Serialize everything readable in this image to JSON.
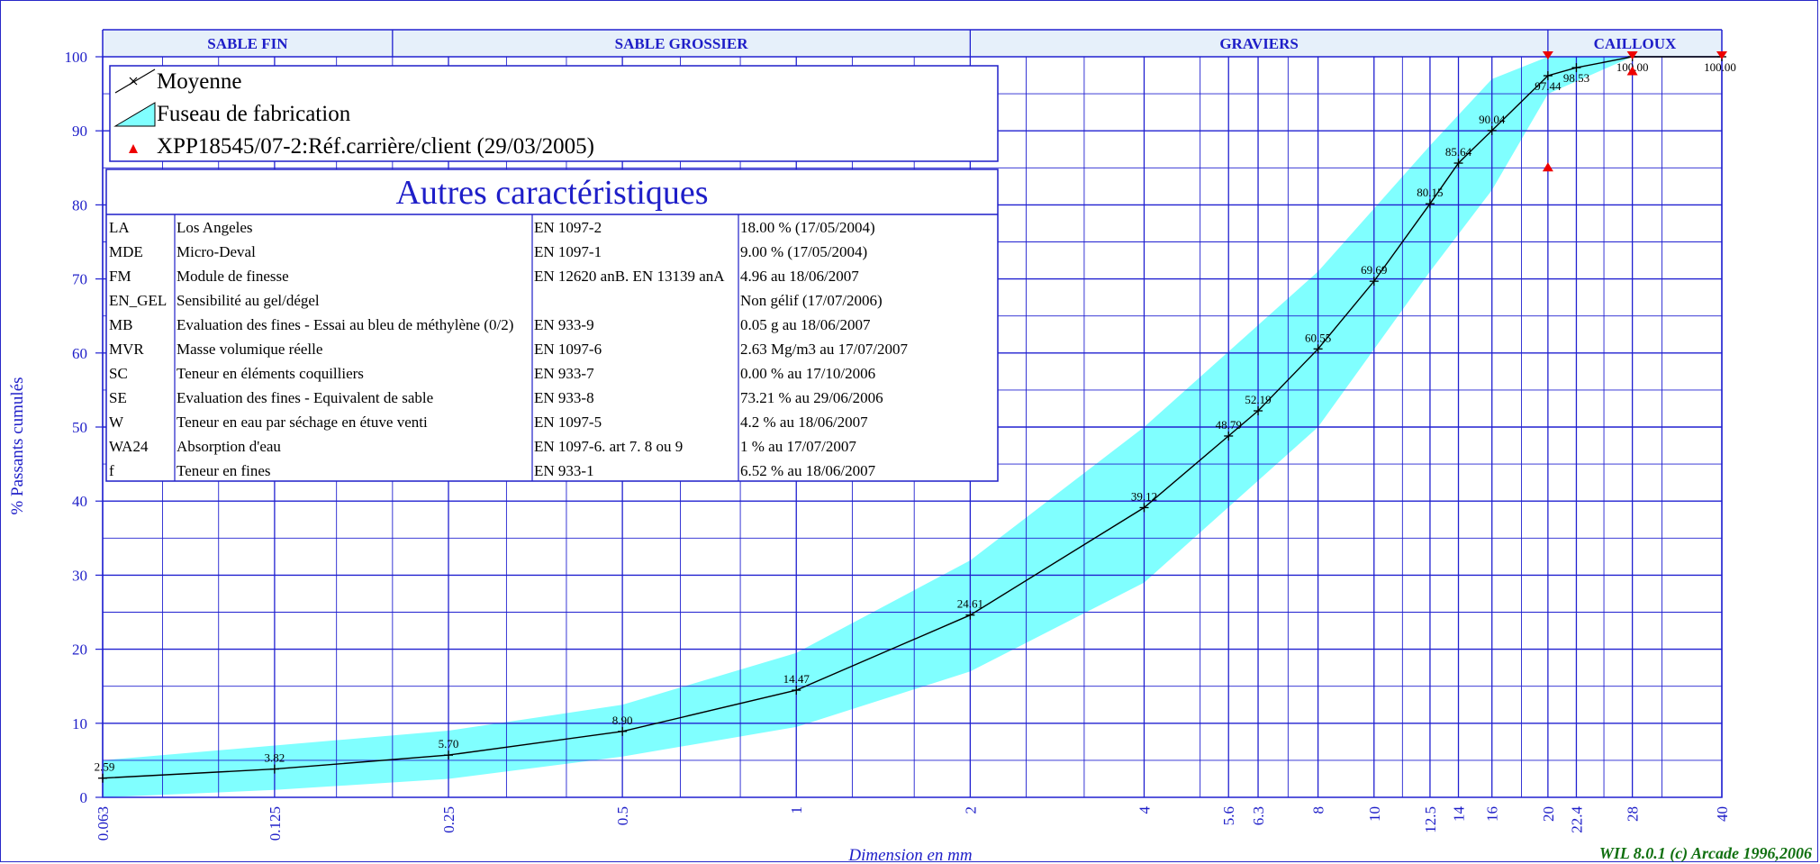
{
  "chart_data": {
    "type": "line",
    "xscale": "log",
    "x_ticks": [
      "0.063",
      "0.125",
      "0.25",
      "0.5",
      "1",
      "2",
      "4",
      "5.6",
      "6.3",
      "8",
      "10",
      "12.5",
      "14",
      "16",
      "20",
      "22.4",
      "28",
      "40"
    ],
    "xlim": [
      0.063,
      40
    ],
    "ylim": [
      0,
      100
    ],
    "y_ticks": [
      0,
      10,
      20,
      30,
      40,
      50,
      60,
      70,
      80,
      90,
      100
    ],
    "ylabel": "% Passants cumulés",
    "xlabel": "Dimension en mm",
    "grid": true,
    "zones": [
      "SABLE FIN",
      "SABLE GROSSIER",
      "GRAVIERS",
      "CAILLOUX"
    ],
    "series": [
      {
        "name": "Moyenne",
        "color": "#000000",
        "x": [
          0.063,
          0.125,
          0.25,
          0.5,
          1,
          2,
          4,
          5.6,
          6.3,
          8,
          10,
          12.5,
          14,
          16,
          20,
          22.4,
          28,
          40
        ],
        "values": [
          2.59,
          3.82,
          5.7,
          8.9,
          14.47,
          24.61,
          39.12,
          48.79,
          52.19,
          60.55,
          69.69,
          80.15,
          85.64,
          90.04,
          97.44,
          98.53,
          100.0,
          100.0
        ],
        "labels": [
          "2.59",
          "3.82",
          "5.70",
          "8.90",
          "14.47",
          "24.61",
          "39.12",
          "48.79",
          "52.19",
          "60.55",
          "69.69",
          "80.15",
          "85.64",
          "90.04",
          "97.44",
          "98.53",
          "100.00",
          "100.00"
        ]
      },
      {
        "name": "Fuseau de fabrication",
        "type": "area",
        "color": "#80ffff",
        "x": [
          0.063,
          0.125,
          0.25,
          0.5,
          1,
          2,
          4,
          8,
          12.5,
          16,
          20,
          28
        ],
        "upper": [
          5,
          7,
          9,
          12.5,
          19.5,
          32,
          50,
          71,
          88,
          97,
          100,
          100
        ],
        "lower": [
          0,
          1,
          2.5,
          5.5,
          9.5,
          17,
          29,
          50,
          71,
          82,
          95,
          100
        ]
      },
      {
        "name": "XPP18545/07-2:Réf.carrière/client (29/03/2005)",
        "type": "scatter",
        "color": "#ee0000",
        "upper_markers": [
          {
            "x": 20,
            "y": 100
          },
          {
            "x": 28,
            "y": 100
          },
          {
            "x": 40,
            "y": 100
          }
        ],
        "lower_markers": [
          {
            "x": 20,
            "y": 85
          },
          {
            "x": 28,
            "y": 98
          }
        ]
      }
    ]
  },
  "legend": {
    "items": [
      "Moyenne",
      "Fuseau de fabrication",
      "XPP18545/07-2:Réf.carrière/client (29/03/2005)"
    ]
  },
  "table": {
    "title": "Autres caractéristiques",
    "rows": [
      [
        "LA",
        "Los Angeles",
        "EN 1097-2",
        "18.00 % (17/05/2004)"
      ],
      [
        "MDE",
        "Micro-Deval",
        "EN 1097-1",
        "9.00 % (17/05/2004)"
      ],
      [
        "FM",
        "Module de finesse",
        "EN 12620 anB. EN 13139 anA",
        "4.96  au 18/06/2007"
      ],
      [
        "EN_GEL",
        "Sensibilité au gel/dégel",
        "",
        "Non gélif (17/07/2006)"
      ],
      [
        "MB",
        "Evaluation des fines - Essai au bleu de méthylène (0/2)",
        "EN 933-9",
        "0.05 g au 18/06/2007"
      ],
      [
        "MVR",
        "Masse volumique réelle",
        "EN 1097-6",
        "2.63 Mg/m3  au 17/07/2007"
      ],
      [
        "SC",
        "Teneur en éléments coquilliers",
        "EN 933-7",
        "0.00 %  au 17/10/2006"
      ],
      [
        "SE",
        "Evaluation des fines - Equivalent de sable",
        "EN 933-8",
        "73.21 %  au 29/06/2006"
      ],
      [
        "W",
        "Teneur en eau par séchage en étuve venti",
        "EN 1097-5",
        "4.2 %  au 18/06/2007"
      ],
      [
        "WA24",
        "Absorption d'eau",
        "EN 1097-6. art 7. 8 ou 9",
        "1 %  au 17/07/2007"
      ],
      [
        "f",
        "Teneur en fines",
        "EN 933-1",
        "6.52 %  au 18/06/2007"
      ]
    ]
  },
  "footer": {
    "credit": "WIL 8.0.1 (c) Arcade 1996,2006"
  },
  "colors": {
    "grid": "#2020d0",
    "axis_text": "#1e1ec8",
    "band": "#80ffff",
    "zone_bg": "#e6f0fa",
    "marker": "#ee0000",
    "credit": "#107010"
  }
}
